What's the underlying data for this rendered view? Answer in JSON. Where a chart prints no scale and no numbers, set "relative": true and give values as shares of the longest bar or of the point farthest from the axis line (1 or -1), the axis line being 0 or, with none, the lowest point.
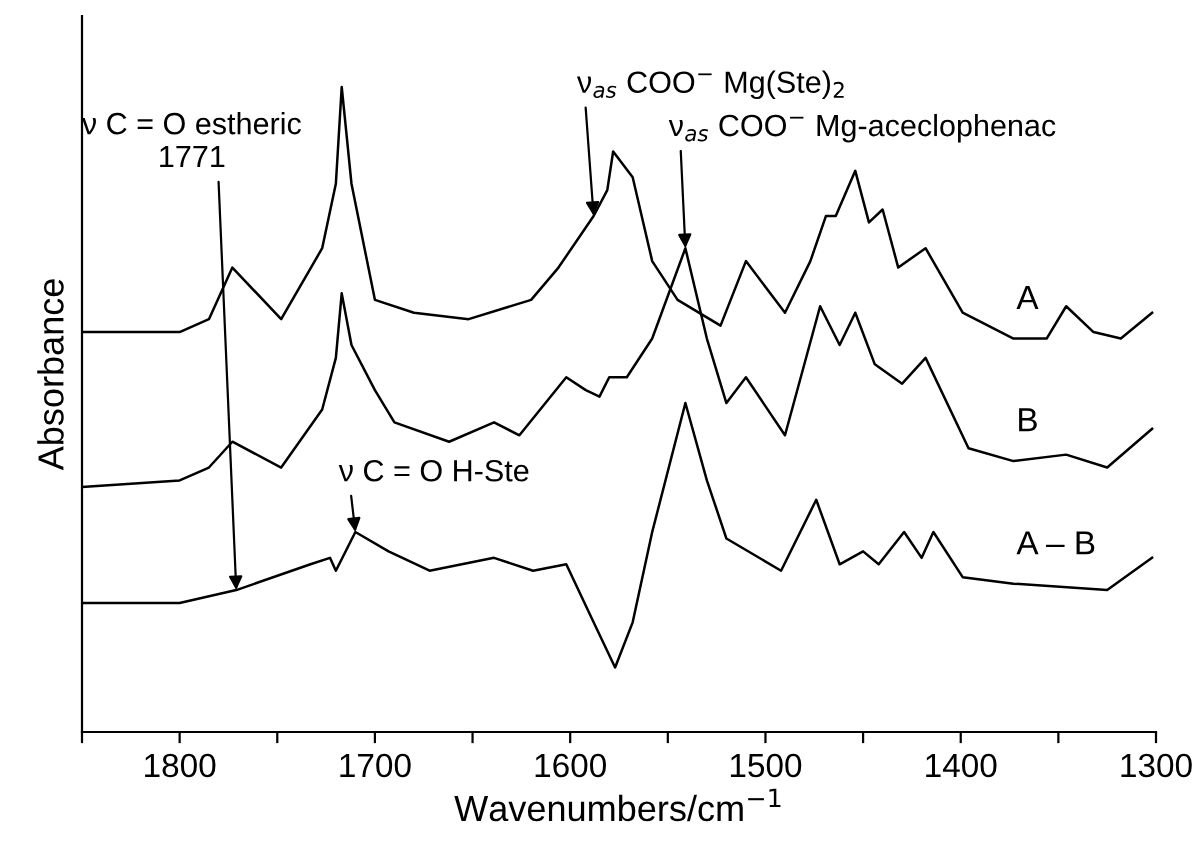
{
  "chart_data": {
    "type": "line",
    "relative": true,
    "xlabel": "Wavenumbers/cm$^{−1}$",
    "ylabel": "Absorbance",
    "xlim": [
      1850,
      1300
    ],
    "xticks": [
      {
        "value": 1850,
        "label": null
      },
      1800,
      {
        "value": 1750,
        "label": null
      },
      1700,
      {
        "value": 1650,
        "label": null
      },
      1600,
      {
        "value": 1550,
        "label": null
      },
      1500,
      {
        "value": 1450,
        "label": null
      },
      1400,
      {
        "value": 1350,
        "label": null
      },
      1300
    ],
    "legend": false,
    "grid": false,
    "marker": "none",
    "line_style": "solid",
    "series": [
      {
        "name": "A",
        "color": "#000000",
        "x": [
          1850,
          1800,
          1785,
          1773,
          1748,
          1727,
          1720,
          1717,
          1712,
          1700,
          1680,
          1652,
          1620,
          1606,
          1588,
          1581,
          1578,
          1568,
          1558,
          1545,
          1523,
          1510,
          1490,
          1477,
          1469,
          1464,
          1454,
          1447,
          1440,
          1432,
          1418,
          1399,
          1373,
          1356,
          1346,
          1332,
          1318,
          1302
        ],
        "values": [
          0.62,
          0.62,
          0.64,
          0.72,
          0.64,
          0.75,
          0.85,
          1.0,
          0.85,
          0.67,
          0.65,
          0.64,
          0.67,
          0.72,
          0.8,
          0.84,
          0.9,
          0.86,
          0.73,
          0.67,
          0.63,
          0.73,
          0.65,
          0.73,
          0.8,
          0.8,
          0.87,
          0.79,
          0.81,
          0.72,
          0.75,
          0.65,
          0.61,
          0.61,
          0.66,
          0.62,
          0.61,
          0.65
        ]
      },
      {
        "name": "B",
        "color": "#000000",
        "x": [
          1850,
          1800,
          1785,
          1773,
          1748,
          1727,
          1720,
          1717,
          1712,
          1700,
          1690,
          1662,
          1639,
          1626,
          1602,
          1592,
          1585,
          1580,
          1571,
          1558,
          1541,
          1530,
          1520,
          1510,
          1490,
          1472,
          1462,
          1454,
          1444,
          1430,
          1418,
          1396,
          1373,
          1346,
          1325,
          1302
        ],
        "values": [
          0.38,
          0.39,
          0.41,
          0.45,
          0.41,
          0.5,
          0.58,
          0.68,
          0.6,
          0.53,
          0.48,
          0.45,
          0.48,
          0.46,
          0.55,
          0.53,
          0.52,
          0.55,
          0.55,
          0.61,
          0.75,
          0.61,
          0.51,
          0.55,
          0.46,
          0.66,
          0.6,
          0.65,
          0.57,
          0.54,
          0.58,
          0.44,
          0.42,
          0.43,
          0.41,
          0.47
        ]
      },
      {
        "name": "A – B",
        "color": "#000000",
        "x": [
          1850,
          1800,
          1771,
          1733,
          1723,
          1720,
          1710,
          1693,
          1672,
          1639,
          1619,
          1602,
          1588,
          1577,
          1568,
          1558,
          1541,
          1530,
          1520,
          1492,
          1474,
          1462,
          1450,
          1442,
          1429,
          1420,
          1414,
          1399,
          1373,
          1325,
          1302
        ],
        "values": [
          0.2,
          0.2,
          0.22,
          0.26,
          0.27,
          0.25,
          0.31,
          0.28,
          0.25,
          0.27,
          0.25,
          0.26,
          0.17,
          0.1,
          0.17,
          0.31,
          0.51,
          0.39,
          0.3,
          0.25,
          0.36,
          0.26,
          0.28,
          0.26,
          0.31,
          0.27,
          0.31,
          0.24,
          0.23,
          0.22,
          0.27
        ]
      }
    ],
    "annotations": [
      {
        "text": "ν C = O estheric\n1771",
        "x": 1771,
        "y": 0.22
      },
      {
        "text": "ν$_{as}$ COO$^{−}$ Mg(Ste)$_{2}$",
        "x": 1588,
        "y": 0.8
      },
      {
        "text": "ν$_{as}$ COO$^{−}$ Mg-aceclophenac",
        "x": 1541,
        "y": 0.75
      },
      {
        "text": "ν C = O H-Ste",
        "x": 1710,
        "y": 0.31
      }
    ]
  }
}
